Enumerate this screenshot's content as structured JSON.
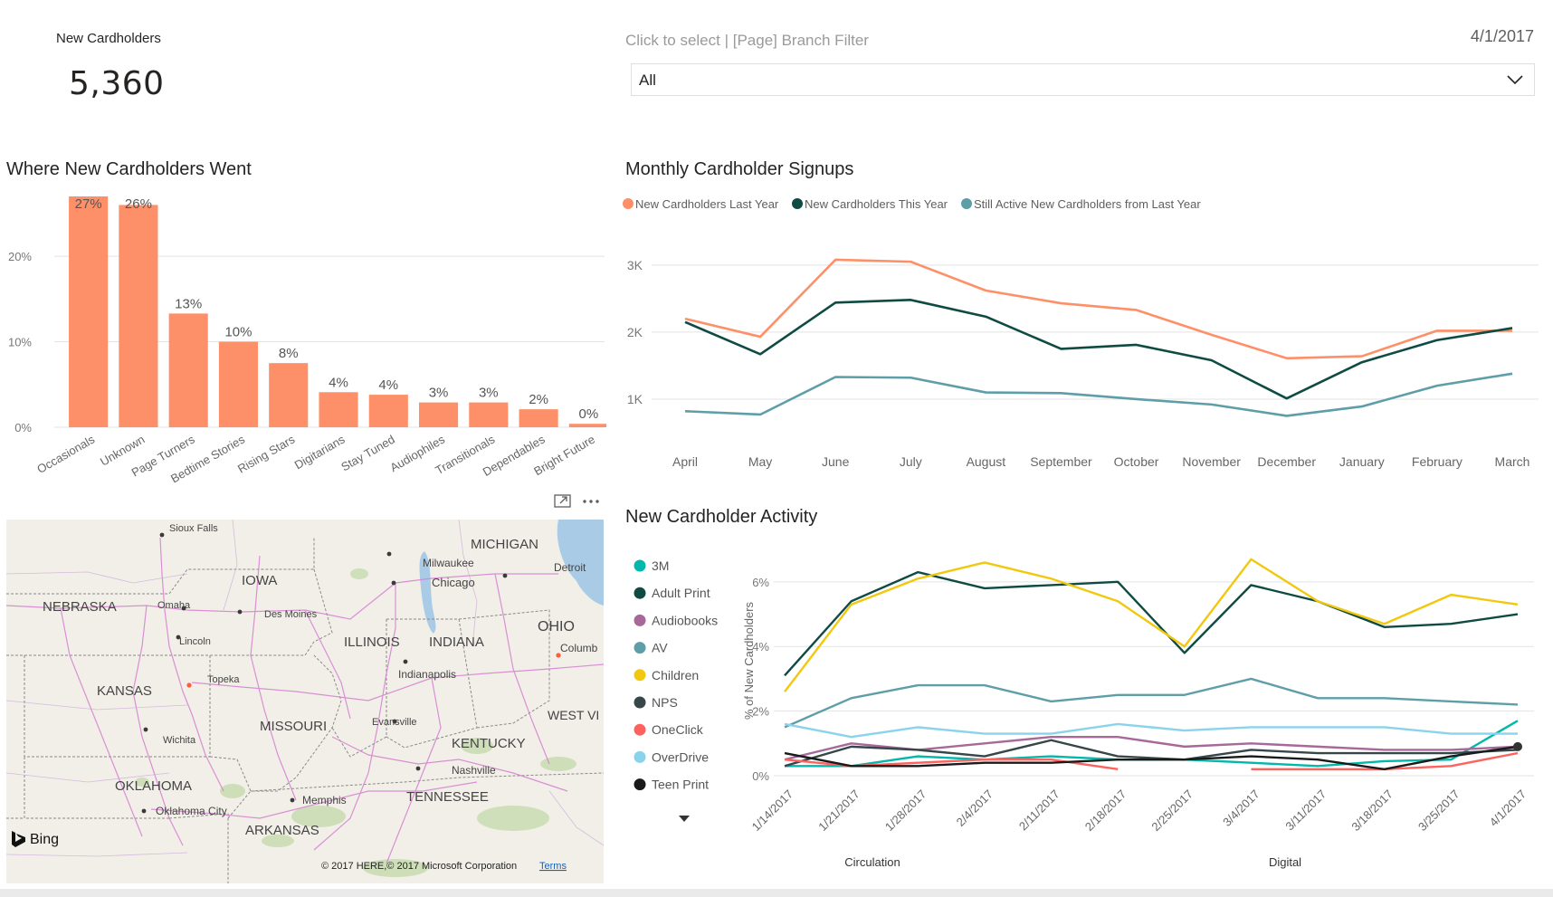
{
  "kpi": {
    "label": "New Cardholders",
    "value": "5,360"
  },
  "filter": {
    "title": "Click to select | [Page] Branch Filter",
    "selected": "All"
  },
  "date": "4/1/2017",
  "colors": {
    "accent": "#fd9068",
    "dark_teal": "#0f4b43",
    "steel": "#5e9ea8"
  },
  "bar_chart": {
    "title": "Where New Cardholders Went",
    "chart_data": {
      "type": "bar",
      "categories": [
        "Occasionals",
        "Unknown",
        "Page Turners",
        "Bedtime Stories",
        "Rising Stars",
        "Digitarians",
        "Stay Tuned",
        "Audiophiles",
        "Transitionals",
        "Dependables",
        "Bright Future"
      ],
      "values": [
        27,
        26,
        13,
        10,
        8,
        4,
        4,
        3,
        3,
        2,
        0
      ],
      "bar_values": [
        27,
        26,
        13.3,
        10,
        7.5,
        4.1,
        3.8,
        2.9,
        2.9,
        2.1,
        0.4
      ],
      "labels": [
        "27%",
        "26%",
        "13%",
        "10%",
        "8%",
        "4%",
        "4%",
        "3%",
        "3%",
        "2%",
        "0%"
      ],
      "yticks": [
        "0%",
        "10%",
        "20%"
      ],
      "ylim": [
        0,
        27
      ],
      "color": "#fd9068"
    }
  },
  "line_chart": {
    "title": "Monthly Cardholder Signups",
    "chart_data": {
      "type": "line",
      "categories": [
        "April",
        "May",
        "June",
        "July",
        "August",
        "September",
        "October",
        "November",
        "December",
        "January",
        "February",
        "March"
      ],
      "series": [
        {
          "name": "New Cardholders Last Year",
          "color": "#fd9068",
          "values": [
            2200,
            1930,
            3080,
            3050,
            2620,
            2430,
            2330,
            1960,
            1610,
            1640,
            2020,
            2020
          ]
        },
        {
          "name": "New Cardholders This Year",
          "color": "#0f4b43",
          "values": [
            2150,
            1670,
            2440,
            2480,
            2230,
            1750,
            1810,
            1580,
            1010,
            1550,
            1880,
            2060
          ]
        },
        {
          "name": "Still Active New Cardholders from Last Year",
          "color": "#5e9ea8",
          "values": [
            820,
            770,
            1330,
            1320,
            1100,
            1090,
            1000,
            920,
            750,
            890,
            1200,
            1380
          ]
        }
      ],
      "yticks": [
        "1K",
        "2K",
        "3K"
      ],
      "ylim": [
        0,
        3700
      ]
    }
  },
  "activity_chart": {
    "title": "New Cardholder Activity",
    "ylabel": "% of New Cardholders",
    "group_labels": [
      "Circulation",
      "Digital"
    ],
    "chart_data": {
      "type": "line",
      "categories": [
        "1/14/2017",
        "1/21/2017",
        "1/28/2017",
        "2/4/2017",
        "2/11/2017",
        "2/18/2017",
        "2/25/2017",
        "3/4/2017",
        "3/11/2017",
        "3/18/2017",
        "3/25/2017",
        "4/1/2017"
      ],
      "yticks": [
        "0%",
        "2%",
        "4%",
        "6%"
      ],
      "ylim": [
        0,
        7.2
      ],
      "series": [
        {
          "name": "3M",
          "color": "#01b8aa",
          "values": [
            0.3,
            0.3,
            0.6,
            0.5,
            0.6,
            0.5,
            0.5,
            0.4,
            0.3,
            0.45,
            0.5,
            1.7
          ]
        },
        {
          "name": "Adult Print",
          "color": "#0f4b43",
          "values": [
            3.1,
            5.4,
            6.3,
            5.8,
            5.9,
            6.0,
            3.8,
            5.9,
            5.4,
            4.6,
            4.7,
            5.0
          ]
        },
        {
          "name": "Audiobooks",
          "color": "#a66999",
          "values": [
            0.5,
            1.0,
            0.8,
            1.0,
            1.2,
            1.2,
            0.9,
            1.0,
            0.9,
            0.8,
            0.8,
            0.9
          ]
        },
        {
          "name": "AV",
          "color": "#5e9ea8",
          "values": [
            1.5,
            2.4,
            2.8,
            2.8,
            2.3,
            2.5,
            2.5,
            3.0,
            2.4,
            2.4,
            2.3,
            2.2
          ]
        },
        {
          "name": "Children",
          "color": "#f2c80f",
          "values": [
            2.6,
            5.3,
            6.1,
            6.6,
            6.1,
            5.4,
            4.0,
            6.7,
            5.4,
            4.7,
            5.6,
            5.3
          ]
        },
        {
          "name": "NPS",
          "color": "#374649",
          "values": [
            0.3,
            0.9,
            0.8,
            0.6,
            1.1,
            0.6,
            0.5,
            0.8,
            0.7,
            0.7,
            0.7,
            0.8
          ]
        },
        {
          "name": "OneClick",
          "color": "#fd625e",
          "values": [
            0.5,
            0.3,
            0.4,
            0.5,
            0.5,
            0.2,
            null,
            0.2,
            0.2,
            0.2,
            0.3,
            0.7
          ]
        },
        {
          "name": "OverDrive",
          "color": "#8ad4eb",
          "values": [
            1.6,
            1.2,
            1.5,
            1.3,
            1.3,
            1.6,
            1.4,
            1.5,
            1.5,
            1.5,
            1.3,
            1.3
          ]
        },
        {
          "name": "Teen Print",
          "color": "#1a1a1a",
          "values": [
            0.7,
            0.3,
            0.3,
            0.4,
            0.4,
            0.5,
            0.5,
            0.6,
            0.5,
            0.2,
            0.6,
            0.9
          ]
        }
      ]
    }
  },
  "map": {
    "labels": [
      "Sioux Falls",
      "IOWA",
      "NEBRASKA",
      "Omaha",
      "Des Moines",
      "Lincoln",
      "MICHIGAN",
      "Milwaukee",
      "Chicago",
      "Detroit",
      "OHIO",
      "Columb",
      "ILLINOIS",
      "INDIANA",
      "Indianapolis",
      "Topeka",
      "KANSAS",
      "MISSOURI",
      "Evansville",
      "WEST VI",
      "Wichita",
      "KENTUCKY",
      "Nashville",
      "OKLAHOMA",
      "Memphis",
      "TENNESSEE",
      "Oklahoma City",
      "ARKANSAS"
    ],
    "attribution": "© 2017 HERE,© 2017 Microsoft Corporation",
    "terms": "Terms",
    "brand": "Bing"
  }
}
